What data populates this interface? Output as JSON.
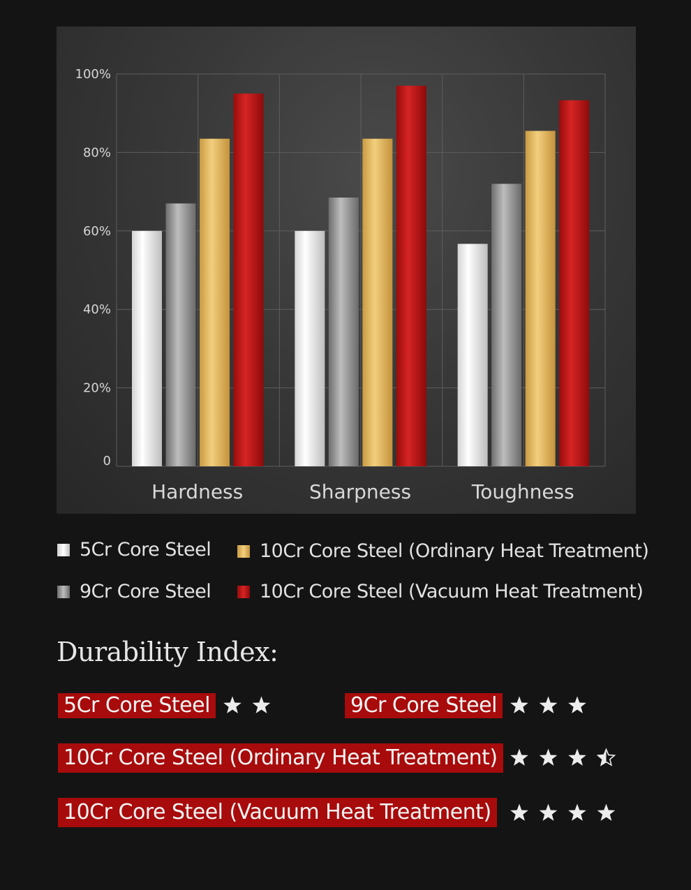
{
  "chart_data": {
    "type": "bar",
    "categories": [
      "Hardness",
      "Sharpness",
      "Toughness"
    ],
    "series": [
      {
        "name": "5Cr Core Steel",
        "values": [
          60,
          60,
          56.7
        ],
        "color": "#e8e8e8"
      },
      {
        "name": "9Cr Core Steel",
        "values": [
          67,
          68.5,
          72
        ],
        "color": "#9a9a9a"
      },
      {
        "name": "10Cr Core Steel (Ordinary Heat Treatment)",
        "values": [
          83.5,
          83.5,
          85.5
        ],
        "color": "#e0b860"
      },
      {
        "name": "10Cr Core Steel (Vacuum Heat Treatment)",
        "values": [
          95,
          97,
          93.3
        ],
        "color": "#c21818"
      }
    ],
    "ylim": [
      0,
      100
    ],
    "yticks": [
      "0",
      "20%",
      "40%",
      "60%",
      "80%",
      "100%"
    ],
    "ytick_values": [
      0,
      20,
      40,
      60,
      80,
      100
    ],
    "grid": true,
    "legend_position": "bottom",
    "title": "",
    "xlabel": "",
    "ylabel": ""
  },
  "legend": {
    "item1": "5Cr Core Steel",
    "item2": "10Cr Core Steel (Ordinary Heat Treatment)",
    "item3": "9Cr Core Steel",
    "item4": "10Cr Core Steel (Vacuum Heat Treatment)"
  },
  "durability": {
    "title": "Durability  Index:",
    "ratings": [
      {
        "label": "5Cr Core Steel",
        "stars": 2
      },
      {
        "label": "9Cr Core Steel",
        "stars": 3
      },
      {
        "label": "10Cr  Core Steel (Ordinary Heat Treatment)",
        "stars": 3.5
      },
      {
        "label": "10Cr  Core Steel (Vacuum Heat Treatment)",
        "stars": 4
      }
    ]
  }
}
